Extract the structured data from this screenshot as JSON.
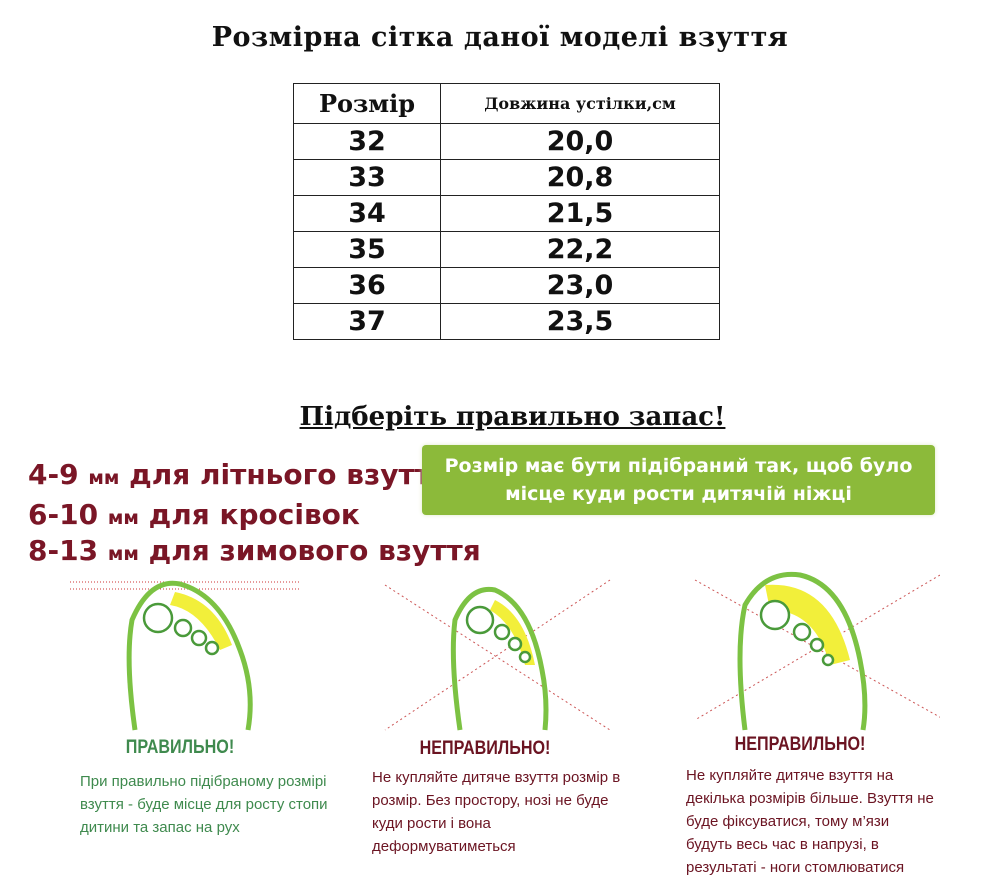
{
  "title": "Розмірна сітка даної моделі взуття",
  "table": {
    "headers": [
      "Розмір",
      "Довжина устілки,см"
    ],
    "rows": [
      [
        "32",
        "20,0"
      ],
      [
        "33",
        "20,8"
      ],
      [
        "34",
        "21,5"
      ],
      [
        "35",
        "22,2"
      ],
      [
        "36",
        "23,0"
      ],
      [
        "37",
        "23,5"
      ]
    ]
  },
  "subtitle": "Підберіть правильно запас!",
  "tips": [
    {
      "range": "4-9",
      "unit": "мм",
      "text": "для літнього взуття"
    },
    {
      "range": "6-10",
      "unit": "мм",
      "text": "для кросівок"
    },
    {
      "range": "8-13",
      "unit": "мм",
      "text": "для зимового взуття"
    }
  ],
  "note": "Розмір має бути підібраний так, щоб було місце куди рости дитячій ніжці",
  "cases": [
    {
      "heading": "ПРАВИЛЬНО!",
      "text": "При правильно підібраному розмірі взуття - буде місце для росту стопи дитини та запас на рух",
      "color": "#3f8a4e"
    },
    {
      "heading": "НЕПРАВИЛЬНО!",
      "text": "Не купляйте дитяче взуття розмір в розмір. Без простору, нозі не буде куди рости і вона деформуватиметься",
      "color": "#6b1422"
    },
    {
      "heading": "НЕПРАВИЛЬНО!",
      "text": "Не купляйте дитяче взуття на декілька розмірів більше. Взуття не буде фіксуватися, тому м’язи будуть весь час в напрузі, в результаті - ноги стомлюватися",
      "color": "#6b1422"
    }
  ],
  "colors": {
    "tip": "#7a1626",
    "box": "#8cba3a",
    "foot_outline": "#7cc243",
    "foot_fill": "#f2ef3a"
  }
}
